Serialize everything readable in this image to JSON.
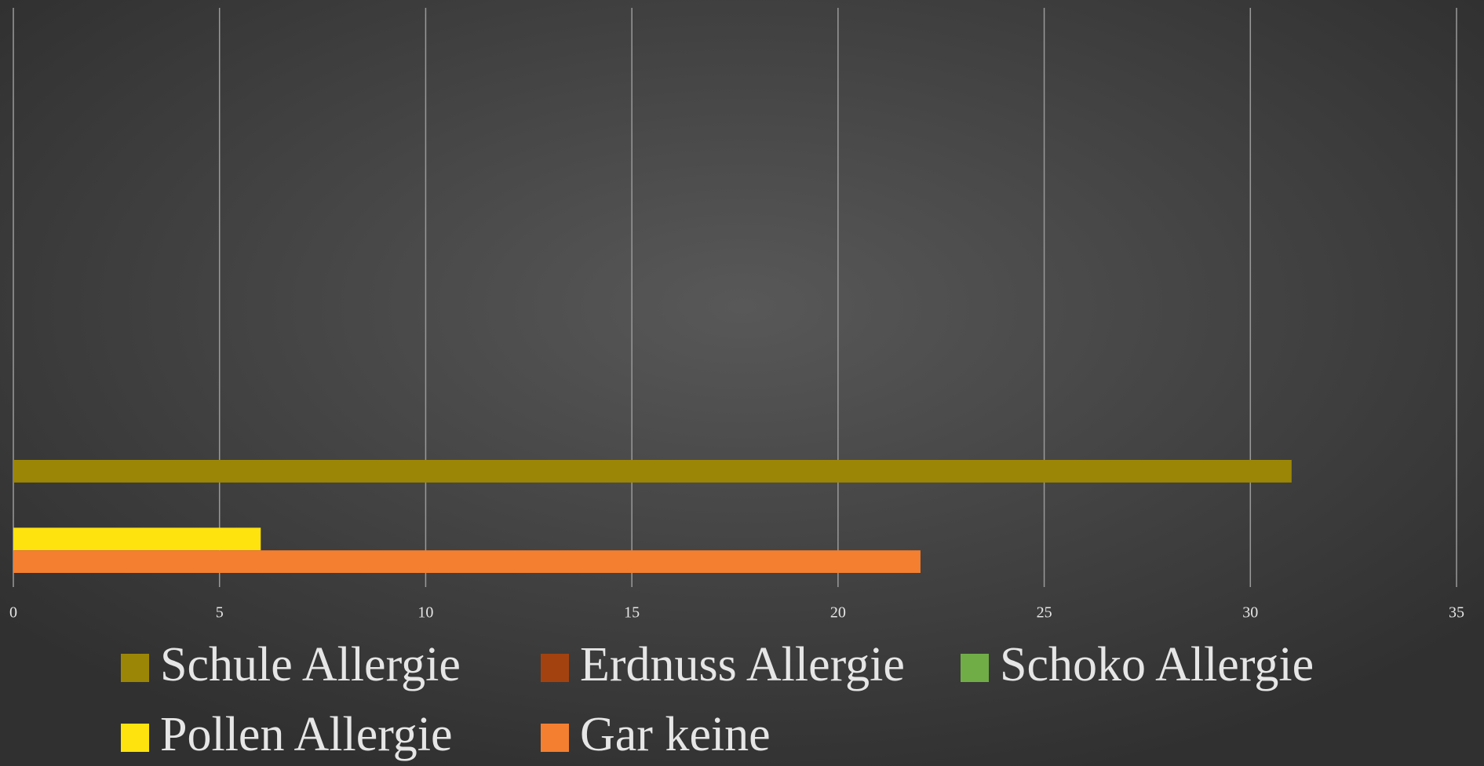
{
  "chart_data": {
    "type": "bar",
    "orientation": "horizontal",
    "categories": [
      null
    ],
    "series": [
      {
        "name": "Schule Allergie",
        "color": "#9c8606",
        "values": [
          31
        ]
      },
      {
        "name": "Erdnuss Allergie",
        "color": "#a4420f",
        "values": [
          0
        ]
      },
      {
        "name": "Schoko Allergie",
        "color": "#70ad47",
        "values": [
          0
        ]
      },
      {
        "name": "Pollen Allergie",
        "color": "#ffe30e",
        "values": [
          6
        ]
      },
      {
        "name": "Gar keine",
        "color": "#f47f30",
        "values": [
          22
        ]
      }
    ],
    "xlim": [
      0,
      35
    ],
    "xticks": [
      0,
      5,
      10,
      15,
      20,
      25,
      30,
      35
    ],
    "grid": true,
    "legend": "bottom"
  }
}
